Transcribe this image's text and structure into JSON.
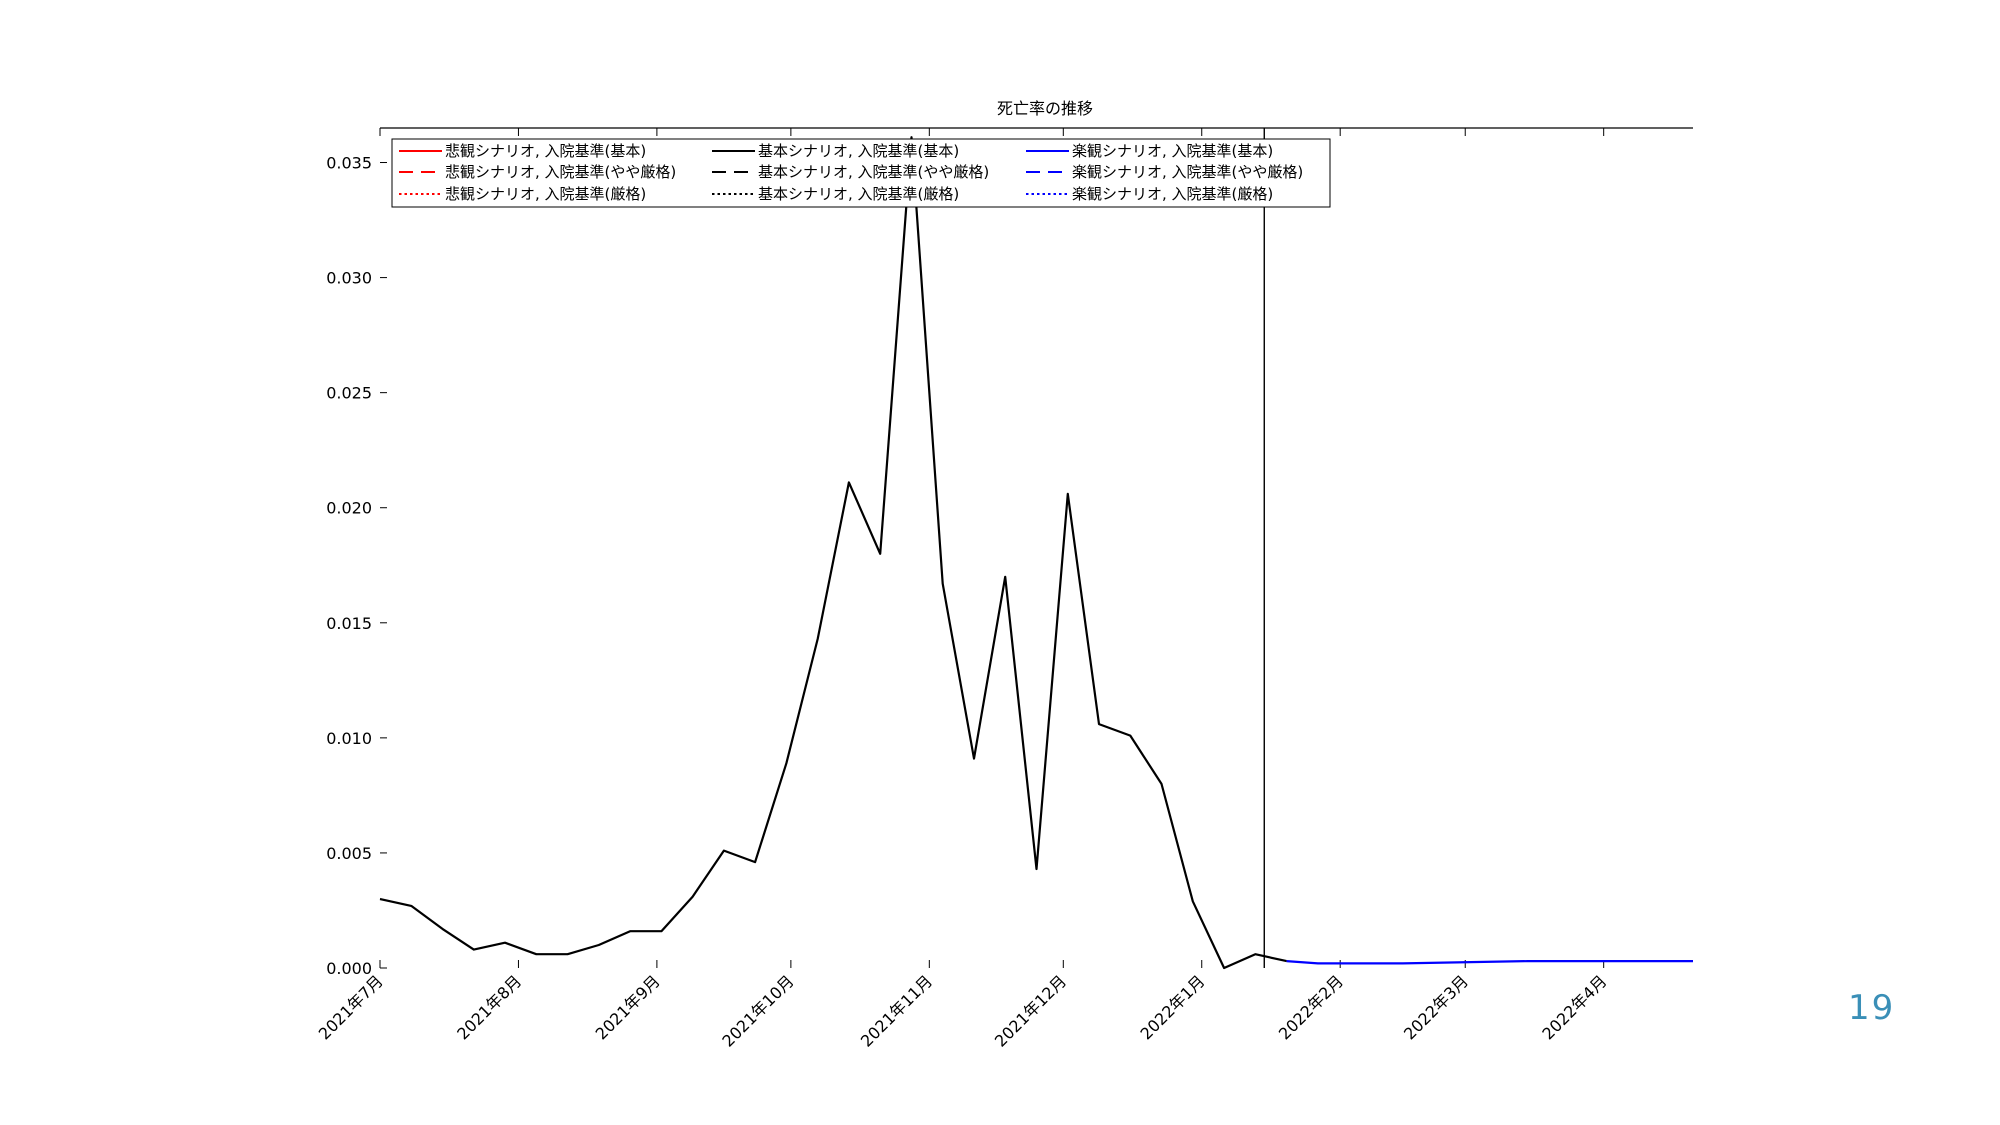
{
  "page_number": "19",
  "colors": {
    "pessimistic": "#ff0000",
    "baseline": "#000000",
    "optimistic": "#0000ff",
    "page_number": "#3a8fb7"
  },
  "chart_data": {
    "type": "line",
    "title": "死亡率の推移",
    "xlabel": "",
    "ylabel": "",
    "x_axis": "date",
    "xlim": [
      "2021-07-01",
      "2022-04-21"
    ],
    "ylim": [
      0,
      0.0365
    ],
    "yticks": [
      0.0,
      0.005,
      0.01,
      0.015,
      0.02,
      0.025,
      0.03,
      0.035
    ],
    "ytick_labels": [
      "0.000",
      "0.005",
      "0.010",
      "0.015",
      "0.020",
      "0.025",
      "0.030",
      "0.035"
    ],
    "xticks": [
      "2021-07-01",
      "2021-08-01",
      "2021-09-01",
      "2021-10-01",
      "2021-11-01",
      "2021-12-01",
      "2022-01-01",
      "2022-02-01",
      "2022-03-01",
      "2022-04-01"
    ],
    "xtick_labels": [
      "2021年7月",
      "2021年8月",
      "2021年9月",
      "2021年10月",
      "2021年11月",
      "2021年12月",
      "2022年1月",
      "2022年2月",
      "2022年3月",
      "2022年4月"
    ],
    "grid": false,
    "legend_position": "top-left",
    "vertical_line": "2022-01-15",
    "legend": [
      {
        "label": "悲観シナリオ, 入院基準(基本)",
        "color": "#ff0000",
        "style": "solid"
      },
      {
        "label": "悲観シナリオ, 入院基準(やや厳格)",
        "color": "#ff0000",
        "style": "dashed"
      },
      {
        "label": "悲観シナリオ, 入院基準(厳格)",
        "color": "#ff0000",
        "style": "dotted"
      },
      {
        "label": "基本シナリオ, 入院基準(基本)",
        "color": "#000000",
        "style": "solid"
      },
      {
        "label": "基本シナリオ, 入院基準(やや厳格)",
        "color": "#000000",
        "style": "dashed"
      },
      {
        "label": "基本シナリオ, 入院基準(厳格)",
        "color": "#000000",
        "style": "dotted"
      },
      {
        "label": "楽観シナリオ, 入院基準(基本)",
        "color": "#0000ff",
        "style": "solid"
      },
      {
        "label": "楽観シナリオ, 入院基準(やや厳格)",
        "color": "#0000ff",
        "style": "dashed"
      },
      {
        "label": "楽観シナリオ, 入院基準(厳格)",
        "color": "#0000ff",
        "style": "dotted"
      }
    ],
    "series": [
      {
        "color": "#000000",
        "style": "solid",
        "points": [
          [
            "2021-07-01",
            0.003
          ],
          [
            "2021-07-08",
            0.0027
          ],
          [
            "2021-07-15",
            0.0017
          ],
          [
            "2021-07-22",
            0.0008
          ],
          [
            "2021-07-29",
            0.0011
          ],
          [
            "2021-08-05",
            0.0006
          ],
          [
            "2021-08-12",
            0.0006
          ],
          [
            "2021-08-19",
            0.001
          ],
          [
            "2021-08-26",
            0.0016
          ],
          [
            "2021-09-02",
            0.0016
          ],
          [
            "2021-09-09",
            0.0031
          ],
          [
            "2021-09-16",
            0.0051
          ],
          [
            "2021-09-23",
            0.0046
          ],
          [
            "2021-09-30",
            0.0089
          ],
          [
            "2021-10-07",
            0.0143
          ],
          [
            "2021-10-14",
            0.0211
          ],
          [
            "2021-10-21",
            0.018
          ],
          [
            "2021-10-28",
            0.0361
          ],
          [
            "2021-11-04",
            0.0167
          ],
          [
            "2021-11-11",
            0.0091
          ],
          [
            "2021-11-18",
            0.017
          ],
          [
            "2021-11-25",
            0.0043
          ],
          [
            "2021-12-02",
            0.0206
          ],
          [
            "2021-12-09",
            0.0106
          ],
          [
            "2021-12-16",
            0.0101
          ],
          [
            "2021-12-23",
            0.008
          ],
          [
            "2021-12-30",
            0.0029
          ],
          [
            "2022-01-06",
            0.0
          ],
          [
            "2022-01-13",
            0.0006
          ],
          [
            "2022-01-20",
            0.0003
          ]
        ]
      },
      {
        "color": "#0000ff",
        "style": "solid",
        "points": [
          [
            "2022-01-20",
            0.0003
          ],
          [
            "2022-01-27",
            0.0002
          ],
          [
            "2022-02-15",
            0.0002
          ],
          [
            "2022-03-15",
            0.0003
          ],
          [
            "2022-04-21",
            0.0003
          ]
        ]
      }
    ]
  }
}
